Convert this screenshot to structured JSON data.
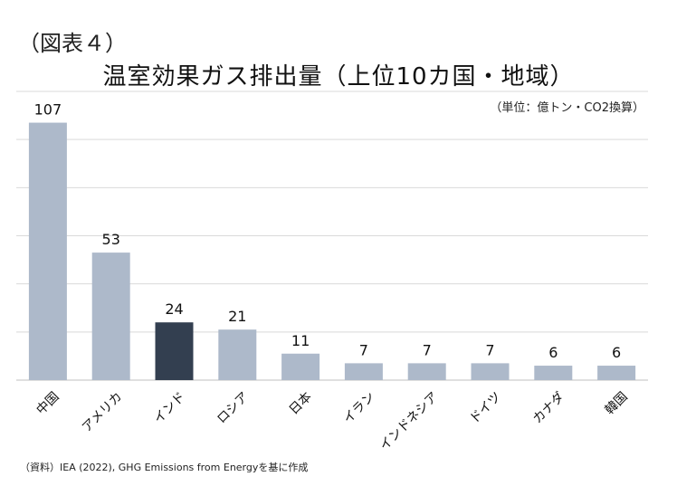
{
  "figure_label": "（図表４）",
  "unit_note": "（単位：億トン・CO2換算）",
  "source_note": "（資料）IEA (2022), GHG Emissions from Energyを基に作成",
  "colors": {
    "bar": "#adb9ca",
    "highlight": "#333f50",
    "grid": "#d9d9d9",
    "axis": "#bfbfbf"
  },
  "chart_data": {
    "type": "bar",
    "title": "温室効果ガス排出量（上位10カ国・地域）",
    "xlabel": "",
    "ylabel": "",
    "ylim": [
      0,
      120
    ],
    "grid": true,
    "highlight_index": 2,
    "categories": [
      "中国",
      "アメリカ",
      "インド",
      "ロシア",
      "日本",
      "イラン",
      "インドネシア",
      "ドイツ",
      "カナダ",
      "韓国"
    ],
    "values": [
      107,
      53,
      24,
      21,
      11,
      7,
      7,
      7,
      6,
      6
    ],
    "data_labels": [
      "107",
      "53",
      "24",
      "21",
      "11",
      "7",
      "7",
      "7",
      "6",
      "6"
    ]
  }
}
